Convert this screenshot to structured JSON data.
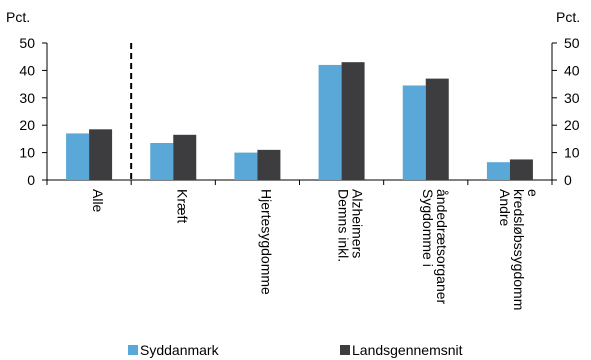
{
  "chart_data": {
    "type": "bar",
    "y_unit_left": "Pct.",
    "y_unit_right": "Pct.",
    "ylim": [
      0,
      50
    ],
    "yticks": [
      0,
      10,
      20,
      30,
      40,
      50
    ],
    "grid": false,
    "legend_position": "bottom",
    "categories": [
      "Alle",
      "Kræft",
      "Hjertesygdomme",
      "Demns inkl. Alzheimers",
      "Sygdomme i åndedrætsorganer",
      "Andre kredsløbssygdomme"
    ],
    "category_label_lines": [
      [
        "Alle"
      ],
      [
        "Kræft"
      ],
      [
        "Hjertesygdomme"
      ],
      [
        "Demns inkl.",
        "Alzheimers"
      ],
      [
        "Sygdomme i",
        "åndedrætsorganer"
      ],
      [
        "Andre",
        "kredsløbssygdomm",
        "e"
      ]
    ],
    "series": [
      {
        "name": "Syddanmark",
        "color": "#5aa8d8",
        "values": [
          17,
          13.5,
          10,
          42,
          34.5,
          6.5
        ]
      },
      {
        "name": "Landsgennemsnit",
        "color": "#3d3d3f",
        "values": [
          18.5,
          16.5,
          11,
          43,
          37,
          7.5
        ]
      }
    ],
    "separator_after_category_index": 0
  }
}
